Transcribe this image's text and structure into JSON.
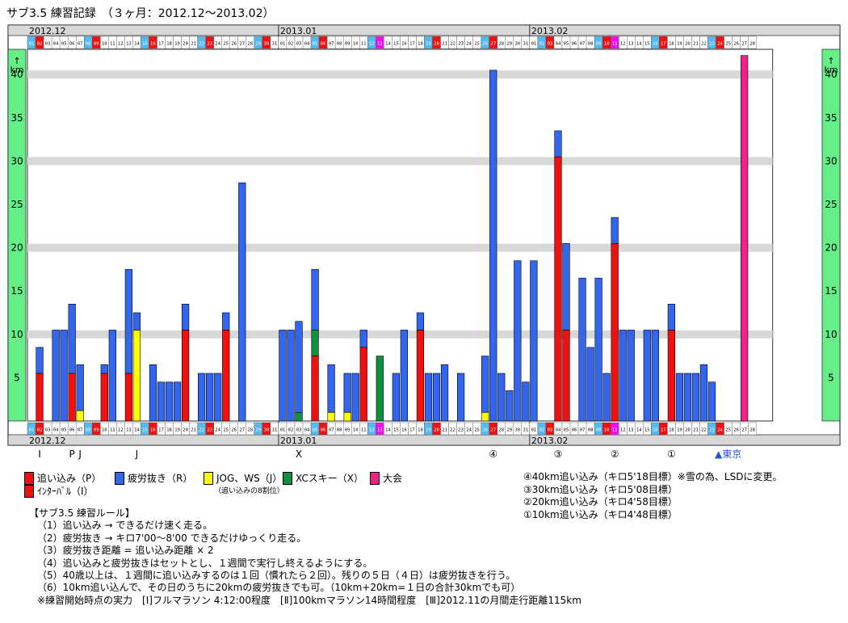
{
  "page_title": "サブ3.5 練習記録　（３ヶ月：2012.12～2013.02）",
  "colors": {
    "push": "#f01010",
    "recovery": "#3366ee",
    "jog": "#ffff00",
    "xc": "#109040",
    "race": "#ee2288",
    "axis_band": "#66ee88",
    "gridline": "#d8d8d8",
    "weekday_cell": "#ffffff",
    "saturday_cell": "#55bbee",
    "sunday_cell": "#ee1111",
    "holiday_cell": "#ee11ee"
  },
  "chart_data": {
    "type": "bar",
    "stacked": true,
    "title": "サブ3.5 練習記録　（３ヶ月：2012.12～2013.02）",
    "ylabel": "km",
    "ylim": [
      0,
      42
    ],
    "yticks": [
      5,
      10,
      15,
      20,
      25,
      30,
      35,
      40
    ],
    "grid": true,
    "months": [
      {
        "label": "2012.12",
        "days": 31
      },
      {
        "label": "2013.01",
        "days": 31
      },
      {
        "label": "2013.02",
        "days": 28
      }
    ],
    "day_colors": [
      "sat",
      "sun",
      "w",
      "w",
      "w",
      "w",
      "w",
      "sat",
      "sun",
      "w",
      "w",
      "w",
      "w",
      "w",
      "sat",
      "sun",
      "w",
      "w",
      "w",
      "w",
      "w",
      "sat",
      "sun",
      "w",
      "w",
      "w",
      "w",
      "w",
      "sat",
      "sun",
      "w",
      "w",
      "w",
      "w",
      "w",
      "sat",
      "sun",
      "w",
      "w",
      "w",
      "w",
      "w",
      "sat",
      "hol",
      "w",
      "w",
      "w",
      "w",
      "w",
      "sat",
      "sun",
      "w",
      "w",
      "w",
      "w",
      "w",
      "sat",
      "sun",
      "w",
      "w",
      "w",
      "w",
      "w",
      "sat",
      "sun",
      "w",
      "w",
      "w",
      "w",
      "w",
      "sat",
      "sun",
      "hol",
      "w",
      "w",
      "w",
      "w",
      "sat",
      "sun",
      "w",
      "w",
      "w",
      "w",
      "w",
      "sat",
      "sun",
      "w",
      "w",
      "w",
      "w"
    ],
    "series_keys": [
      "push",
      "jog",
      "xc",
      "recovery",
      "race"
    ],
    "daily": [
      null,
      {
        "push": 5.5,
        "recovery": 3
      },
      null,
      {
        "recovery": 10.5
      },
      {
        "recovery": 10.5
      },
      {
        "push": 5.5,
        "recovery": 8
      },
      {
        "jog": 1.2,
        "recovery": 5.3
      },
      null,
      null,
      {
        "push": 5.5,
        "recovery": 1
      },
      {
        "recovery": 10.5
      },
      null,
      {
        "push": 5.5,
        "recovery": 12
      },
      {
        "jog": 10.5,
        "recovery": 2
      },
      null,
      {
        "recovery": 6.5
      },
      {
        "recovery": 4.5
      },
      {
        "recovery": 4.5
      },
      {
        "recovery": 4.5
      },
      {
        "push": 10.5,
        "recovery": 3
      },
      null,
      {
        "recovery": 5.5
      },
      {
        "recovery": 5.5
      },
      {
        "recovery": 5.5
      },
      {
        "push": 10.5,
        "recovery": 2
      },
      null,
      {
        "recovery": 27.5
      },
      null,
      null,
      null,
      null,
      {
        "recovery": 10.5
      },
      {
        "recovery": 10.5
      },
      {
        "recovery": 10.5,
        "xc": 1
      },
      null,
      {
        "push": 7.5,
        "xc": 3,
        "recovery": 7
      },
      null,
      {
        "jog": 1,
        "recovery": 5.5
      },
      null,
      {
        "jog": 1,
        "recovery": 4.5
      },
      {
        "recovery": 5.5
      },
      {
        "push": 8.5,
        "recovery": 2
      },
      null,
      {
        "xc": 7.5
      },
      null,
      {
        "recovery": 5.5
      },
      {
        "recovery": 10.5
      },
      null,
      {
        "push": 10.5,
        "recovery": 2
      },
      {
        "recovery": 5.5
      },
      {
        "recovery": 5.5
      },
      {
        "recovery": 6.5
      },
      null,
      {
        "recovery": 5.5
      },
      null,
      null,
      {
        "jog": 1,
        "recovery": 6.5
      },
      {
        "recovery": 40.5
      },
      {
        "recovery": 5.5
      },
      {
        "recovery": 3.5
      },
      {
        "recovery": 18.5
      },
      {
        "recovery": 4.5
      },
      {
        "recovery": 18.5
      },
      null,
      null,
      {
        "push": 30.5,
        "recovery": 3
      },
      {
        "push": 10.5,
        "recovery": 10
      },
      null,
      {
        "recovery": 16.5
      },
      {
        "recovery": 8.5
      },
      {
        "recovery": 16.5
      },
      {
        "recovery": 5.5
      },
      {
        "push": 20.5,
        "recovery": 3
      },
      {
        "recovery": 10.5
      },
      {
        "recovery": 10.5
      },
      null,
      {
        "recovery": 10.5
      },
      {
        "recovery": 10.5
      },
      null,
      {
        "push": 10.5,
        "recovery": 3
      },
      {
        "recovery": 5.5
      },
      {
        "recovery": 5.5
      },
      {
        "recovery": 5.5
      },
      {
        "recovery": 6.5
      },
      {
        "recovery": 4.5
      },
      null,
      null,
      null,
      {
        "race": 42.195
      },
      null,
      null,
      null
    ],
    "annotations": [
      {
        "day_index": 1,
        "text": "I"
      },
      {
        "day_index": 5,
        "text": "P"
      },
      {
        "day_index": 6,
        "text": "J"
      },
      {
        "day_index": 13,
        "text": "J"
      },
      {
        "day_index": 33,
        "text": "X"
      },
      {
        "day_index": 57,
        "text": "④"
      },
      {
        "day_index": 65,
        "text": "③"
      },
      {
        "day_index": 72,
        "text": "②"
      },
      {
        "day_index": 79,
        "text": "①"
      },
      {
        "day_index": 86,
        "text": "▲東京"
      }
    ]
  },
  "legend": {
    "push": "追い込み（P）",
    "interval": "ｲﾝﾀｰﾊﾞﾙ（I）",
    "recovery": "疲労抜き（R）",
    "jog": "JOG、WS（J）",
    "jog_note": "（追い込みの8割位）",
    "xc": "XCスキー（X）",
    "race": "大会"
  },
  "goals": [
    "④40km追い込み（キロ5'18目標）※雪の為、LSDに変更。",
    "③30km追い込み（キロ5'08目標）",
    "②20km追い込み（キロ4'58目標）",
    "①10km追い込み（キロ4'48目標）"
  ],
  "rules": {
    "title": "【サブ3.5 練習ルール】",
    "items": [
      "（1）追い込み → できるだけ速く走る。",
      "（2）疲労抜き → キロ7'00～8'00 できるだけゆっくり走る。",
      "（3）疲労抜き距離 = 追い込み距離 × 2",
      "（4）追い込みと疲労抜きはセットとし、１週間で実行し終えるようにする。",
      "（5）40歳以上は、１週間に追い込みするのは１回（慣れたら２回）。残りの５日（４日）は疲労抜きを行う。",
      "（6）10km追い込んで、その日のうちに20kmの疲労抜きでも可。（10km+20km=１日の合計30kmでも可）"
    ],
    "footnote": "※練習開始時点の実力　[Ⅰ]フルマラソン 4:12:00程度　[Ⅱ]100kmマラソン14時間程度　[Ⅲ]2012.11の月間走行距離115km"
  }
}
